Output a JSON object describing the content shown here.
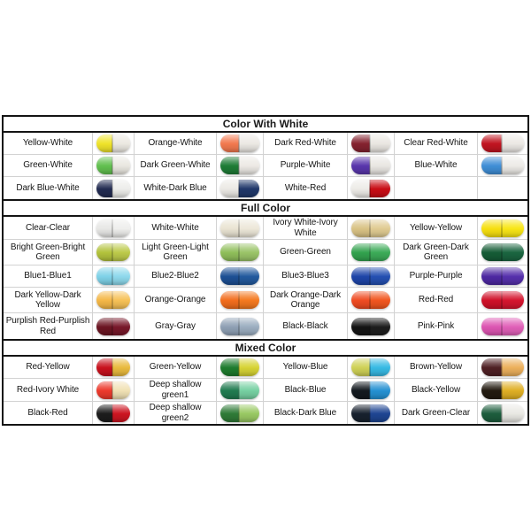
{
  "page": {
    "background": "#ffffff",
    "border_color": "#141414",
    "grid_line_color": "#d2d2d2"
  },
  "chart_data": {
    "type": "table",
    "title": "",
    "layout": {
      "column_groups": 4,
      "columns_per_group": [
        "color name",
        "capsule swatch"
      ],
      "grid": "on",
      "section_header_style": "bold centered, thick black rules"
    },
    "sections": [
      {
        "title": "Color With White",
        "tall_rows": [],
        "rows": [
          [
            {
              "label": "Yellow-White",
              "cap": "#efe32a",
              "body": "#ebe8e1"
            },
            {
              "label": "Orange-White",
              "cap": "#f2794f",
              "body": "#ebe8e3"
            },
            {
              "label": "Dark Red-White",
              "cap": "#84222f",
              "body": "#e9e6e1"
            },
            {
              "label": "Clear Red-White",
              "cap": "#c11420",
              "body": "#ebe8e4"
            }
          ],
          [
            {
              "label": "Green-White",
              "cap": "#62c04f",
              "body": "#e9e7e0"
            },
            {
              "label": "Dark Green-White",
              "cap": "#1e7c36",
              "body": "#ece9e4"
            },
            {
              "label": "Purple-White",
              "cap": "#5936ac",
              "body": "#e9e6e2"
            },
            {
              "label": "Blue-White",
              "cap": "#3f8ed6",
              "body": "#eceae6"
            }
          ],
          [
            {
              "label": "Dark Blue-White",
              "cap": "#232c52",
              "body": "#ededea"
            },
            {
              "label": "White-Dark Blue",
              "cap": "#ebe9e4",
              "body": "#20386a"
            },
            {
              "label": "White-Red",
              "cap": "#edebe7",
              "body": "#c90d15"
            },
            null
          ]
        ]
      },
      {
        "title": "Full Color",
        "tall_rows": [
          1,
          3,
          4
        ],
        "rows": [
          [
            {
              "label": "Clear-Clear",
              "cap": "#e7e7e5",
              "body": "#eeeeec"
            },
            {
              "label": "White-White",
              "cap": "#e9e3d2",
              "body": "#ece7d8"
            },
            {
              "label": "Ivory White-Ivory White",
              "cap": "#d9c285",
              "body": "#e0cb92"
            },
            {
              "label": "Yellow-Yellow",
              "cap": "#f6df10",
              "body": "#f8e616"
            }
          ],
          [
            {
              "label": "Bright Green-Bright Green",
              "cap": "#b2c23c",
              "body": "#bcca4a"
            },
            {
              "label": "Light Green-Light Green",
              "cap": "#8fbe5a",
              "body": "#9ac468"
            },
            {
              "label": "Green-Green",
              "cap": "#32a24e",
              "body": "#3cab58"
            },
            {
              "label": "Dark Green-Dark Green",
              "cap": "#155c36",
              "body": "#1a6540"
            }
          ],
          [
            {
              "label": "Blue1-Blue1",
              "cap": "#7fd2e8",
              "body": "#8ed9ec"
            },
            {
              "label": "Blue2-Blue2",
              "cap": "#1d4f94",
              "body": "#235a9e"
            },
            {
              "label": "Blue3-Blue3",
              "cap": "#1e45a8",
              "body": "#2450b2"
            },
            {
              "label": "Purple-Purple",
              "cap": "#4d28a2",
              "body": "#5630ac"
            }
          ],
          [
            {
              "label": "Dark Yellow-Dark Yellow",
              "cap": "#f4b747",
              "body": "#f6c157"
            },
            {
              "label": "Orange-Orange",
              "cap": "#f26d1d",
              "body": "#f4791f"
            },
            {
              "label": "Dark Orange-Dark Orange",
              "cap": "#ef4b22",
              "body": "#f1561f"
            },
            {
              "label": "Red-Red",
              "cap": "#cf1028",
              "body": "#d5152e"
            }
          ],
          [
            {
              "label": "Purplish Red-Purplish Red",
              "cap": "#6c1522",
              "body": "#78182a"
            },
            {
              "label": "Gray-Gray",
              "cap": "#8fa0b4",
              "body": "#9caec0"
            },
            {
              "label": "Black-Black",
              "cap": "#131313",
              "body": "#1d1d1d"
            },
            {
              "label": "Pink-Pink",
              "cap": "#dd55b2",
              "body": "#e160b8"
            }
          ]
        ]
      },
      {
        "title": "Mixed Color",
        "tall_rows": [],
        "rows": [
          [
            {
              "label": "Red-Yellow",
              "cap": "#c8111d",
              "body": "#e9ba3e"
            },
            {
              "label": "Green-Yellow",
              "cap": "#1e7c2e",
              "body": "#d6d335"
            },
            {
              "label": "Yellow-Blue",
              "cap": "#cfd157",
              "body": "#38bae4"
            },
            {
              "label": "Brown-Yellow",
              "cap": "#4f2024",
              "body": "#ecb05c"
            }
          ],
          [
            {
              "label": "Red-Ivory White",
              "cap": "#ec3a2c",
              "body": "#f0e1b4"
            },
            {
              "label": "Deep shallow green1",
              "cap": "#207b50",
              "body": "#76d0a2"
            },
            {
              "label": "Black-Blue",
              "cap": "#13191f",
              "body": "#2591d2"
            },
            {
              "label": "Black-Yellow",
              "cap": "#221a10",
              "body": "#dfaf25"
            }
          ],
          [
            {
              "label": "Black-Red",
              "cap": "#1c1c1c",
              "body": "#cc1521"
            },
            {
              "label": "Deep shallow green2",
              "cap": "#2f7b37",
              "body": "#99c963"
            },
            {
              "label": "Black-Dark Blue",
              "cap": "#17212e",
              "body": "#1e4592"
            },
            {
              "label": "Dark Green-Clear",
              "cap": "#1d5d3d",
              "body": "#e9e8e3"
            }
          ]
        ]
      }
    ]
  }
}
